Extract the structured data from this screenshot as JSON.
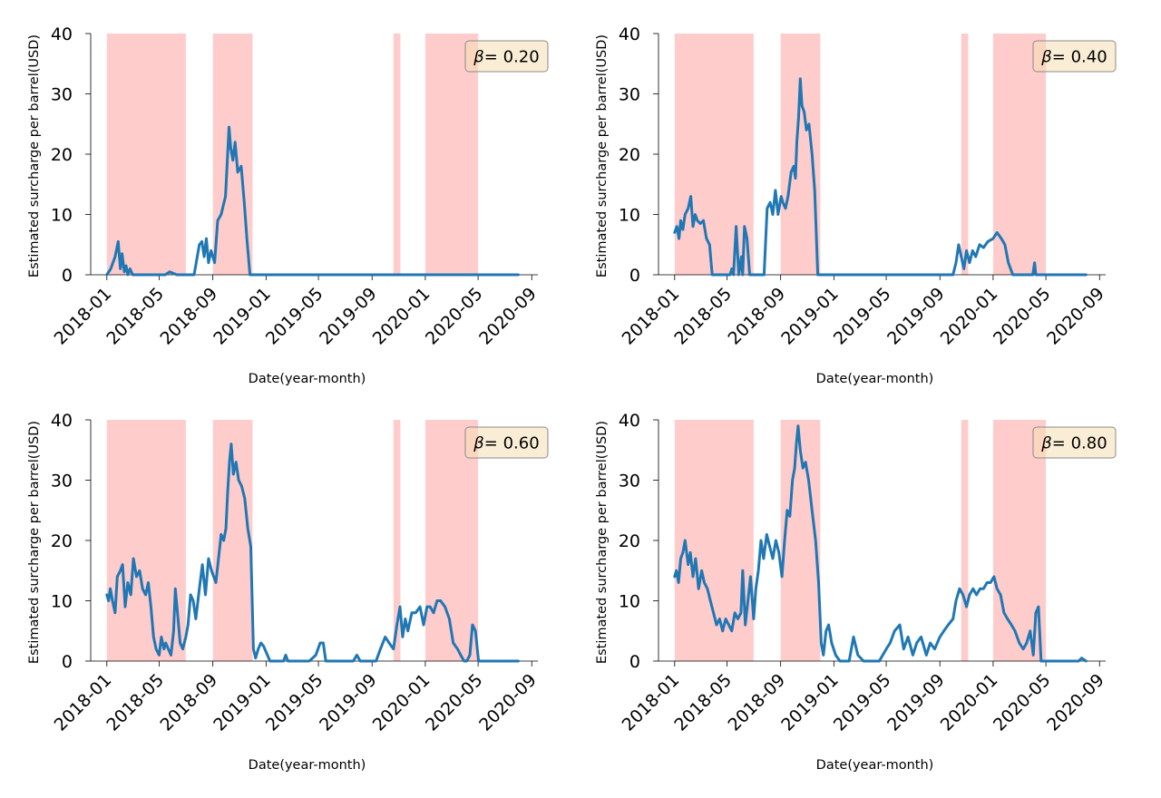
{
  "chart_data": [
    {
      "type": "line",
      "xlabel": "Date(year-month)",
      "ylabel": "Estimated surcharge per barrel(USD)",
      "ylim": [
        0,
        40
      ],
      "yticks": [
        "0",
        "10",
        "20",
        "30",
        "40"
      ],
      "xlim": [
        "2017-11-25",
        "2020-09-15"
      ],
      "xticks": [
        "2018-01",
        "2018-05",
        "2018-09",
        "2019-01",
        "2019-05",
        "2019-09",
        "2020-01",
        "2020-05",
        "2020-09"
      ],
      "annotation": {
        "prefix": "β",
        "value": "= 0.20"
      },
      "shaded_ranges": [
        [
          "2018-01-01",
          "2018-07-01"
        ],
        [
          "2018-09-01",
          "2018-12-01"
        ],
        [
          "2019-10-20",
          "2019-11-05"
        ],
        [
          "2020-01-01",
          "2020-05-01"
        ]
      ],
      "series": [
        {
          "x": [
            "2018-01-01",
            "2018-01-10",
            "2018-01-20",
            "2018-01-27",
            "2018-02-01",
            "2018-02-05",
            "2018-02-10",
            "2018-02-14",
            "2018-02-18",
            "2018-02-23",
            "2018-03-01",
            "2018-03-05",
            "2018-03-10",
            "2018-03-20",
            "2018-04-15",
            "2018-05-05",
            "2018-05-15",
            "2018-05-25",
            "2018-06-10",
            "2018-06-25",
            "2018-07-05",
            "2018-07-20",
            "2018-08-01",
            "2018-08-07",
            "2018-08-12",
            "2018-08-17",
            "2018-08-22",
            "2018-08-28",
            "2018-09-05",
            "2018-09-12",
            "2018-09-20",
            "2018-09-30",
            "2018-10-05",
            "2018-10-08",
            "2018-10-12",
            "2018-10-17",
            "2018-10-22",
            "2018-10-28",
            "2018-11-05",
            "2018-11-12",
            "2018-11-18",
            "2018-11-25",
            "2018-12-01",
            "2019-01-01",
            "2019-06-01",
            "2019-12-01",
            "2020-05-01",
            "2020-08-01"
          ],
          "y": [
            0,
            1,
            3,
            5.5,
            1,
            3.5,
            0.5,
            1.5,
            0,
            1,
            0,
            0,
            0,
            0,
            0,
            0,
            0,
            0.5,
            0,
            0,
            0,
            0,
            5,
            5.5,
            3,
            6,
            2,
            4,
            2,
            9,
            10,
            13,
            20,
            24.5,
            21,
            19,
            22,
            17,
            18,
            12,
            6,
            0,
            0,
            0,
            0,
            0,
            0,
            0
          ]
        }
      ]
    },
    {
      "type": "line",
      "xlabel": "Date(year-month)",
      "ylabel": "Estimated surcharge per barrel(USD)",
      "ylim": [
        0,
        40
      ],
      "yticks": [
        "0",
        "10",
        "20",
        "30",
        "40"
      ],
      "xlim": [
        "2017-11-25",
        "2020-09-15"
      ],
      "xticks": [
        "2018-01",
        "2018-05",
        "2018-09",
        "2019-01",
        "2019-05",
        "2019-09",
        "2020-01",
        "2020-05",
        "2020-09"
      ],
      "annotation": {
        "prefix": "β",
        "value": "= 0.40"
      },
      "shaded_ranges": [
        [
          "2018-01-01",
          "2018-07-01"
        ],
        [
          "2018-09-01",
          "2018-12-01"
        ],
        [
          "2019-10-20",
          "2019-11-05"
        ],
        [
          "2020-01-01",
          "2020-05-01"
        ]
      ],
      "series": [
        {
          "x": [
            "2018-01-01",
            "2018-01-06",
            "2018-01-11",
            "2018-01-15",
            "2018-01-20",
            "2018-01-25",
            "2018-02-01",
            "2018-02-07",
            "2018-02-12",
            "2018-02-17",
            "2018-02-22",
            "2018-03-01",
            "2018-03-08",
            "2018-03-15",
            "2018-03-22",
            "2018-03-28",
            "2018-04-05",
            "2018-04-12",
            "2018-04-22",
            "2018-05-02",
            "2018-05-08",
            "2018-05-12",
            "2018-05-16",
            "2018-05-22",
            "2018-05-28",
            "2018-06-03",
            "2018-06-06",
            "2018-06-10",
            "2018-06-16",
            "2018-06-22",
            "2018-06-28",
            "2018-07-05",
            "2018-07-15",
            "2018-07-25",
            "2018-08-01",
            "2018-08-08",
            "2018-08-14",
            "2018-08-20",
            "2018-08-26",
            "2018-09-02",
            "2018-09-06",
            "2018-09-12",
            "2018-09-18",
            "2018-09-25",
            "2018-10-01",
            "2018-10-05",
            "2018-10-08",
            "2018-10-12",
            "2018-10-16",
            "2018-10-20",
            "2018-10-25",
            "2018-10-30",
            "2018-11-05",
            "2018-11-12",
            "2018-11-18",
            "2018-11-25",
            "2018-12-02",
            "2019-01-01",
            "2019-06-01",
            "2019-10-01",
            "2019-10-08",
            "2019-10-14",
            "2019-10-20",
            "2019-10-26",
            "2019-11-01",
            "2019-11-08",
            "2019-11-15",
            "2019-11-22",
            "2019-12-01",
            "2019-12-10",
            "2019-12-20",
            "2020-01-01",
            "2020-01-10",
            "2020-01-20",
            "2020-01-28",
            "2020-02-05",
            "2020-02-15",
            "2020-03-01",
            "2020-03-15",
            "2020-03-25",
            "2020-04-01",
            "2020-04-05",
            "2020-04-08",
            "2020-04-15",
            "2020-05-01",
            "2020-08-01"
          ],
          "y": [
            7,
            8,
            6,
            9,
            7.5,
            10,
            11,
            13,
            8,
            10,
            9,
            8.5,
            9,
            6,
            5,
            0,
            0,
            0,
            0,
            0,
            0,
            1,
            0,
            8,
            0,
            3,
            0,
            8,
            6,
            0,
            0,
            0,
            0,
            0,
            11,
            12,
            10,
            14,
            10,
            13,
            12,
            11,
            13,
            17,
            18,
            16,
            22,
            26,
            32.5,
            28,
            27,
            24,
            25,
            20,
            14,
            0,
            0,
            0,
            0,
            0,
            2,
            5,
            3,
            1,
            4,
            2,
            4,
            3,
            5,
            4.5,
            5.5,
            6,
            7,
            6,
            5,
            2,
            0,
            0,
            0,
            0,
            0,
            2,
            0,
            0,
            0,
            0
          ]
        }
      ]
    },
    {
      "type": "line",
      "xlabel": "Date(year-month)",
      "ylabel": "Estimated surcharge per barrel(USD)",
      "ylim": [
        0,
        40
      ],
      "yticks": [
        "0",
        "10",
        "20",
        "30",
        "40"
      ],
      "xlim": [
        "2017-11-25",
        "2020-09-15"
      ],
      "xticks": [
        "2018-01",
        "2018-05",
        "2018-09",
        "2019-01",
        "2019-05",
        "2019-09",
        "2020-01",
        "2020-05",
        "2020-09"
      ],
      "annotation": {
        "prefix": "β",
        "value": "= 0.60"
      },
      "shaded_ranges": [
        [
          "2018-01-01",
          "2018-07-01"
        ],
        [
          "2018-09-01",
          "2018-12-01"
        ],
        [
          "2019-10-20",
          "2019-11-05"
        ],
        [
          "2020-01-01",
          "2020-05-01"
        ]
      ],
      "series": [
        {
          "x": [
            "2018-01-01",
            "2018-01-05",
            "2018-01-09",
            "2018-01-14",
            "2018-01-20",
            "2018-01-25",
            "2018-02-01",
            "2018-02-06",
            "2018-02-12",
            "2018-02-18",
            "2018-02-25",
            "2018-03-03",
            "2018-03-10",
            "2018-03-17",
            "2018-03-24",
            "2018-03-31",
            "2018-04-06",
            "2018-04-12",
            "2018-04-18",
            "2018-04-24",
            "2018-05-01",
            "2018-05-06",
            "2018-05-12",
            "2018-05-16",
            "2018-05-22",
            "2018-05-28",
            "2018-06-03",
            "2018-06-07",
            "2018-06-12",
            "2018-06-18",
            "2018-06-24",
            "2018-07-01",
            "2018-07-06",
            "2018-07-12",
            "2018-07-18",
            "2018-07-24",
            "2018-08-01",
            "2018-08-08",
            "2018-08-15",
            "2018-08-22",
            "2018-08-29",
            "2018-09-03",
            "2018-09-08",
            "2018-09-14",
            "2018-09-20",
            "2018-09-26",
            "2018-10-01",
            "2018-10-05",
            "2018-10-09",
            "2018-10-13",
            "2018-10-18",
            "2018-10-24",
            "2018-10-30",
            "2018-11-06",
            "2018-11-13",
            "2018-11-20",
            "2018-11-27",
            "2018-12-03",
            "2018-12-08",
            "2018-12-14",
            "2018-12-20",
            "2018-12-26",
            "2019-01-10",
            "2019-02-10",
            "2019-02-15",
            "2019-02-20",
            "2019-04-10",
            "2019-04-25",
            "2019-05-05",
            "2019-05-12",
            "2019-05-18",
            "2019-06-10",
            "2019-07-20",
            "2019-07-28",
            "2019-08-05",
            "2019-08-20",
            "2019-09-10",
            "2019-09-20",
            "2019-10-01",
            "2019-10-10",
            "2019-10-20",
            "2019-10-28",
            "2019-11-04",
            "2019-11-10",
            "2019-11-16",
            "2019-11-22",
            "2019-12-01",
            "2019-12-10",
            "2019-12-20",
            "2019-12-28",
            "2020-01-05",
            "2020-01-12",
            "2020-01-20",
            "2020-01-28",
            "2020-02-05",
            "2020-02-15",
            "2020-02-25",
            "2020-03-05",
            "2020-03-15",
            "2020-03-22",
            "2020-03-30",
            "2020-04-05",
            "2020-04-12",
            "2020-04-18",
            "2020-04-25",
            "2020-05-02",
            "2020-08-01"
          ],
          "y": [
            11,
            10,
            12,
            10,
            8,
            14,
            15,
            16,
            9,
            13,
            11,
            17,
            14,
            15,
            12,
            11,
            13,
            9,
            4,
            2,
            1,
            4,
            2,
            3,
            2,
            1,
            5,
            12,
            8,
            3,
            2,
            4,
            6,
            11,
            10,
            7,
            12,
            16,
            11,
            17,
            15,
            14,
            13,
            17,
            21,
            20,
            22,
            28,
            33,
            36,
            31,
            33,
            30,
            29,
            27,
            22,
            19,
            2,
            0.5,
            2,
            3,
            2.5,
            0,
            0,
            1,
            0,
            0,
            1,
            3,
            3,
            0,
            0,
            0,
            1,
            0,
            0,
            0,
            2,
            4,
            3,
            2,
            6,
            9,
            4,
            7,
            5,
            8,
            8,
            9,
            6,
            9,
            9,
            8,
            10,
            10,
            9,
            7,
            3,
            2,
            1,
            0,
            0,
            1,
            6,
            5,
            0,
            0
          ]
        }
      ]
    },
    {
      "type": "line",
      "xlabel": "Date(year-month)",
      "ylabel": "Estimated surcharge per barrel(USD)",
      "ylim": [
        0,
        40
      ],
      "yticks": [
        "0",
        "10",
        "20",
        "30",
        "40"
      ],
      "xlim": [
        "2017-11-25",
        "2020-09-15"
      ],
      "xticks": [
        "2018-01",
        "2018-05",
        "2018-09",
        "2019-01",
        "2019-05",
        "2019-09",
        "2020-01",
        "2020-05",
        "2020-09"
      ],
      "annotation": {
        "prefix": "β",
        "value": "= 0.80"
      },
      "shaded_ranges": [
        [
          "2018-01-01",
          "2018-07-01"
        ],
        [
          "2018-09-01",
          "2018-12-01"
        ],
        [
          "2019-10-20",
          "2019-11-05"
        ],
        [
          "2020-01-01",
          "2020-05-01"
        ]
      ],
      "series": [
        {
          "x": [
            "2018-01-01",
            "2018-01-05",
            "2018-01-10",
            "2018-01-15",
            "2018-01-20",
            "2018-01-25",
            "2018-02-01",
            "2018-02-06",
            "2018-02-12",
            "2018-02-18",
            "2018-02-25",
            "2018-03-04",
            "2018-03-10",
            "2018-03-17",
            "2018-03-24",
            "2018-03-31",
            "2018-04-07",
            "2018-04-14",
            "2018-04-21",
            "2018-04-28",
            "2018-05-05",
            "2018-05-12",
            "2018-05-19",
            "2018-05-26",
            "2018-06-02",
            "2018-06-06",
            "2018-06-12",
            "2018-06-18",
            "2018-06-24",
            "2018-07-01",
            "2018-07-06",
            "2018-07-12",
            "2018-07-18",
            "2018-07-24",
            "2018-07-31",
            "2018-08-07",
            "2018-08-14",
            "2018-08-21",
            "2018-08-28",
            "2018-09-04",
            "2018-09-10",
            "2018-09-16",
            "2018-09-22",
            "2018-09-28",
            "2018-10-03",
            "2018-10-07",
            "2018-10-11",
            "2018-10-16",
            "2018-10-22",
            "2018-10-28",
            "2018-11-04",
            "2018-11-12",
            "2018-11-20",
            "2018-11-27",
            "2018-12-03",
            "2018-12-08",
            "2018-12-14",
            "2018-12-20",
            "2018-12-27",
            "2019-01-05",
            "2019-01-15",
            "2019-01-25",
            "2019-02-05",
            "2019-02-15",
            "2019-02-25",
            "2019-03-10",
            "2019-03-20",
            "2019-04-01",
            "2019-04-15",
            "2019-05-01",
            "2019-05-10",
            "2019-05-20",
            "2019-06-01",
            "2019-06-10",
            "2019-06-20",
            "2019-07-01",
            "2019-07-10",
            "2019-07-20",
            "2019-08-01",
            "2019-08-10",
            "2019-08-20",
            "2019-09-01",
            "2019-09-10",
            "2019-09-20",
            "2019-10-01",
            "2019-10-08",
            "2019-10-16",
            "2019-10-24",
            "2019-11-01",
            "2019-11-08",
            "2019-11-16",
            "2019-11-24",
            "2019-12-02",
            "2019-12-10",
            "2019-12-18",
            "2019-12-26",
            "2020-01-03",
            "2020-01-10",
            "2020-01-18",
            "2020-01-26",
            "2020-02-03",
            "2020-02-12",
            "2020-02-20",
            "2020-03-01",
            "2020-03-10",
            "2020-03-18",
            "2020-03-26",
            "2020-04-02",
            "2020-04-08",
            "2020-04-14",
            "2020-04-20",
            "2020-04-26",
            "2020-05-02",
            "2020-07-15",
            "2020-07-22",
            "2020-08-01"
          ],
          "y": [
            14,
            15,
            13,
            17,
            18,
            20,
            16,
            18,
            14,
            17,
            12,
            15,
            13,
            12,
            10,
            8,
            6,
            7,
            5,
            7,
            6,
            5,
            8,
            7,
            8,
            15,
            6,
            10,
            14,
            7,
            12,
            15,
            20,
            17,
            21,
            19,
            17,
            20,
            18,
            14,
            20,
            25,
            24,
            30,
            32,
            36,
            39,
            35,
            32,
            33,
            30,
            25,
            20,
            13,
            3,
            1,
            5,
            6,
            3,
            1,
            0,
            0,
            0,
            4,
            1,
            0,
            0,
            0,
            0,
            2,
            3,
            5,
            6,
            2,
            4,
            1,
            3,
            4,
            1,
            3,
            2,
            4,
            5,
            6,
            7,
            10,
            12,
            11,
            9,
            11,
            12,
            11,
            12,
            12,
            13,
            13,
            14,
            12,
            11,
            8,
            7,
            6,
            5,
            3,
            2,
            3,
            5,
            1,
            8,
            9,
            0,
            0,
            0,
            0,
            0.5,
            0
          ]
        }
      ]
    }
  ]
}
